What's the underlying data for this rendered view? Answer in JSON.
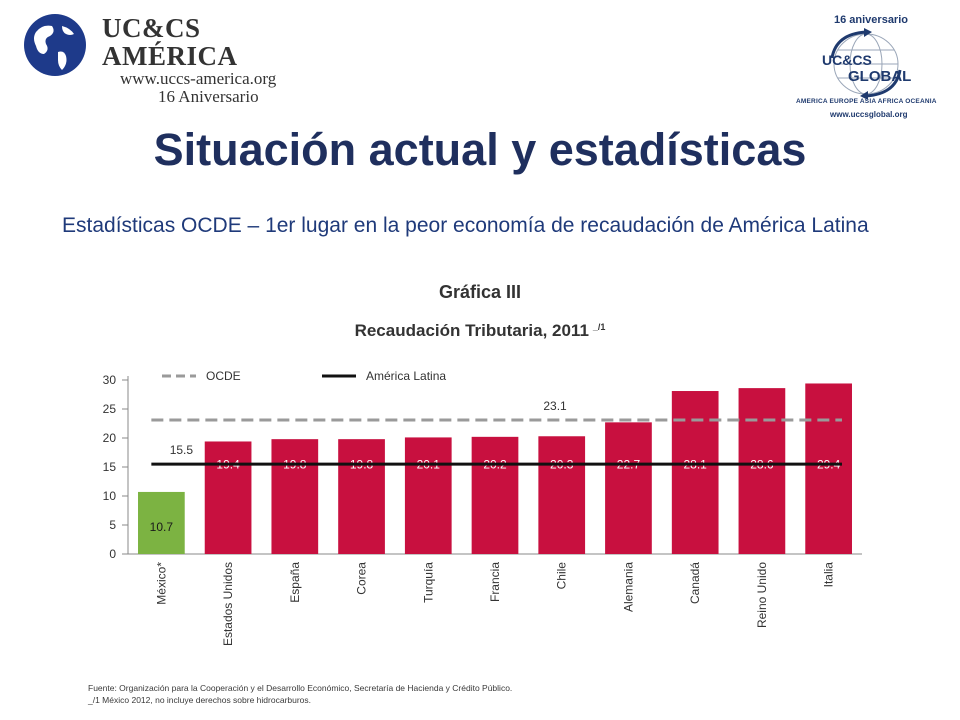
{
  "header": {
    "left_logo": {
      "name": "UC&CS AMÉRICA",
      "url": "www.uccs-america.org",
      "anniversary": "16 Aniversario"
    },
    "right_logo": {
      "anniversary": "16 aniversario",
      "brand_top": "UC&CS",
      "brand_bottom": "GLOBAL",
      "continents": "AMERICA  EUROPE  ASIA  AFRICA  OCEANIA",
      "url": "www.uccsglobal.org"
    }
  },
  "slide": {
    "title": "Situación actual y estadísticas",
    "subtitle": "Estadísticas OCDE – 1er lugar en la peor economía de recaudación de América Latina"
  },
  "chart_data": {
    "type": "bar",
    "title": "Gráfica III",
    "subtitle": "Recaudación Tributaria, 2011",
    "title_note": "_/1",
    "categories": [
      "México*",
      "Estados Unidos",
      "España",
      "Corea",
      "Turquía",
      "Francia",
      "Chile",
      "Alemania",
      "Canadá",
      "Reino Unido",
      "Italia"
    ],
    "values": [
      10.7,
      19.4,
      19.8,
      19.8,
      20.1,
      20.2,
      20.3,
      22.7,
      28.1,
      28.6,
      29.4
    ],
    "value_labels": [
      "10.7",
      "19.4",
      "19.8",
      "19.8",
      "20.1",
      "20.2",
      "20.3",
      "22.7",
      "28.1",
      "28.6",
      "29.4"
    ],
    "ylim": [
      0,
      30
    ],
    "yticks": [
      0,
      5,
      10,
      15,
      20,
      25,
      30
    ],
    "reference_lines": [
      {
        "name": "OCDE",
        "value": 23.1,
        "label": "23.1",
        "style": "dashed",
        "color": "#9a9a9a"
      },
      {
        "name": "América Latina",
        "value": 15.5,
        "label": "15.5",
        "style": "solid",
        "color": "#111111"
      }
    ],
    "colors": {
      "highlight": "#7cb342",
      "bar": "#c8103f"
    },
    "highlight_index": 0,
    "legend_position": "top-left",
    "grid": false
  },
  "footnote": {
    "line1": "Fuente: Organización para la Cooperación y el Desarrollo Económico, Secretaría de Hacienda y Crédito Público.",
    "line2": "_/1  México 2012, no incluye derechos sobre hidrocarburos."
  }
}
